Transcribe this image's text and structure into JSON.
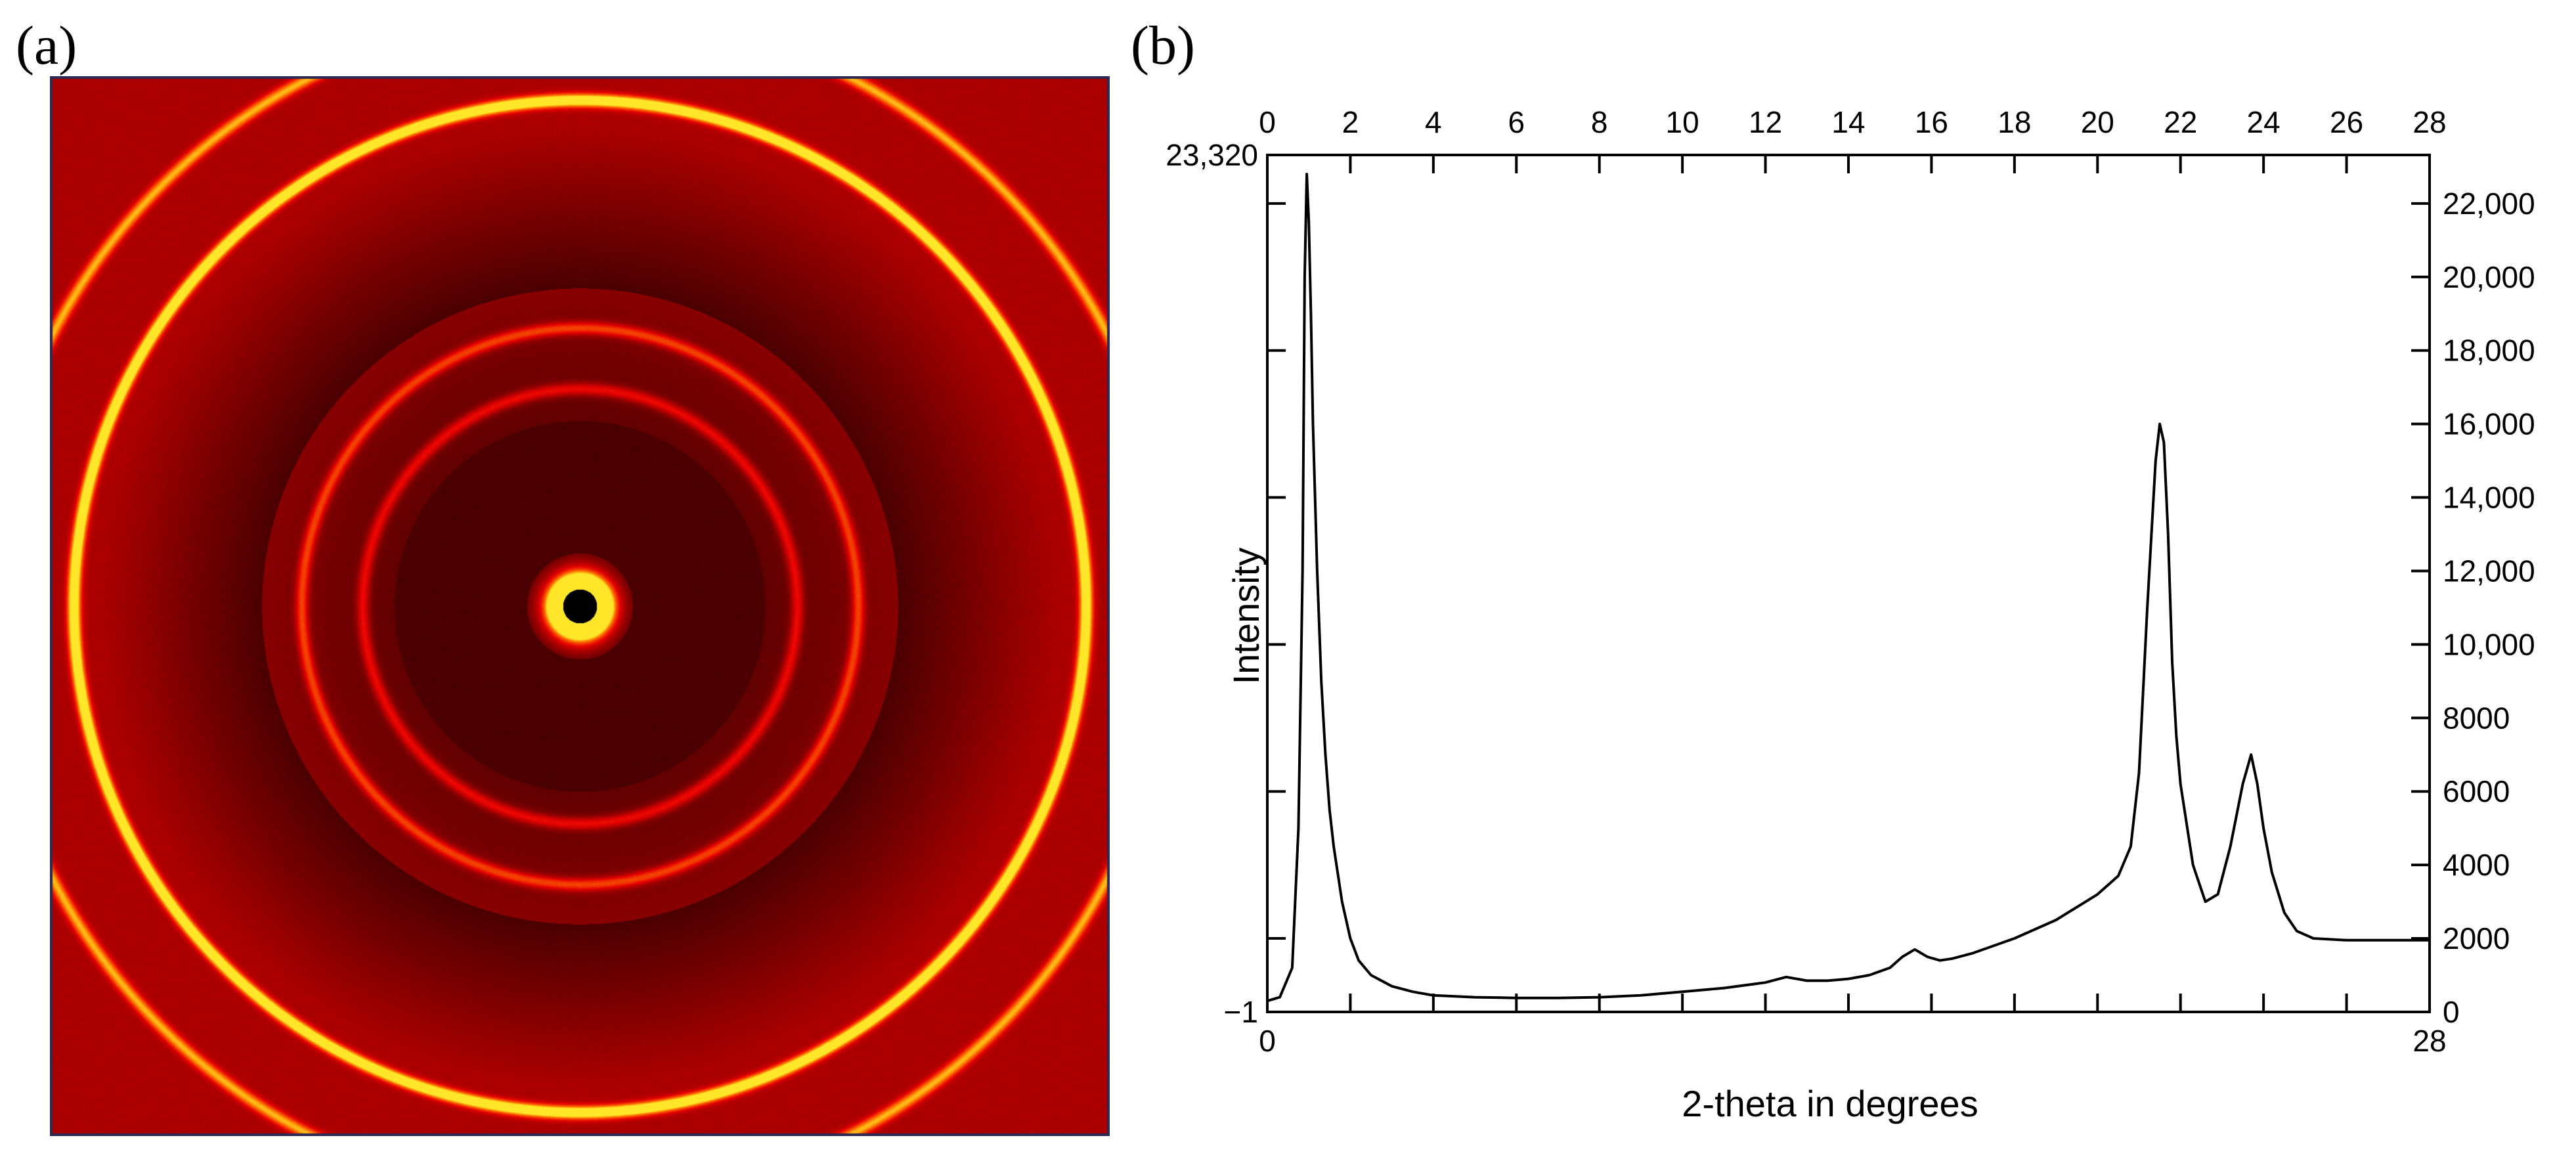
{
  "panels": {
    "a": {
      "label": "(a)",
      "image": {
        "description_icon": "saxs-ring-pattern",
        "colors": {
          "background": "#8a0000",
          "inner_dark": "#220000",
          "ring_bright": "#ffd21a",
          "ring_mid": "#e23200",
          "beamstop": "#000000"
        },
        "rings": [
          {
            "radius_frac": 0.047,
            "intensity": 1.0
          },
          {
            "radius_frac": 0.41,
            "intensity": 0.35
          },
          {
            "radius_frac": 0.525,
            "intensity": 0.45
          },
          {
            "radius_frac": 0.955,
            "intensity": 1.0
          },
          {
            "radius_frac": 1.12,
            "intensity": 0.6
          }
        ]
      }
    },
    "b": {
      "label": "(b)"
    }
  },
  "chart_data": {
    "type": "line",
    "xlabel": "2-theta in degrees",
    "ylabel": "Intensity",
    "xlim": [
      0,
      28
    ],
    "ylim": [
      -1,
      23320
    ],
    "x_ticks_top": [
      0,
      2,
      4,
      6,
      8,
      10,
      12,
      14,
      16,
      18,
      20,
      22,
      24,
      26,
      28
    ],
    "x_tick_labels_top": [
      "0",
      "2",
      "4",
      "6",
      "8",
      "10",
      "12",
      "14",
      "16",
      "18",
      "20",
      "22",
      "24",
      "26",
      "28"
    ],
    "x_ticks_bottom": [
      0,
      2,
      4,
      6,
      8,
      10,
      12,
      14,
      16,
      18,
      20,
      22,
      24,
      26,
      28
    ],
    "x_tick_labels_bottom": [
      "0",
      "",
      "",
      "",
      "",
      "",
      "",
      "",
      "",
      "",
      "",
      "",
      "",
      "",
      "28"
    ],
    "y_ticks_right": [
      0,
      2000,
      4000,
      6000,
      8000,
      10000,
      12000,
      14000,
      16000,
      18000,
      20000,
      22000
    ],
    "y_tick_labels_right": [
      "0",
      "2000",
      "4000",
      "6000",
      "8000",
      "10,000",
      "12,000",
      "14,000",
      "16,000",
      "18,000",
      "20,000",
      "22,000"
    ],
    "y_ticks_left": [
      2000,
      6000,
      10000,
      14000,
      18000,
      22000
    ],
    "y_extent_labels_left": {
      "max": "23,320",
      "min": "−1"
    },
    "grid": false,
    "series": [
      {
        "x": [
          0,
          0.3,
          0.6,
          0.75,
          0.85,
          0.9,
          0.95,
          1.0,
          1.05,
          1.1,
          1.2,
          1.3,
          1.4,
          1.5,
          1.6,
          1.8,
          2.0,
          2.2,
          2.5,
          3.0,
          3.5,
          4.0,
          5.0,
          6.0,
          7.0,
          8.0,
          9.0,
          10.0,
          11.0,
          12.0,
          12.5,
          13.0,
          13.5,
          14.0,
          14.5,
          15.0,
          15.3,
          15.6,
          15.9,
          16.2,
          16.5,
          17.0,
          18.0,
          19.0,
          20.0,
          20.5,
          20.8,
          21.0,
          21.2,
          21.4,
          21.5,
          21.6,
          21.7,
          21.8,
          21.9,
          22.0,
          22.3,
          22.6,
          22.9,
          23.2,
          23.5,
          23.7,
          23.85,
          24.0,
          24.2,
          24.5,
          24.8,
          25.2,
          26.0,
          27.0,
          28.0
        ],
        "y": [
          300,
          400,
          1200,
          5000,
          12000,
          20000,
          22800,
          21500,
          19000,
          16000,
          12000,
          9000,
          7000,
          5500,
          4500,
          3000,
          2000,
          1400,
          1000,
          700,
          550,
          450,
          400,
          380,
          380,
          400,
          450,
          550,
          650,
          800,
          950,
          850,
          850,
          900,
          1000,
          1200,
          1500,
          1700,
          1500,
          1400,
          1450,
          1600,
          2000,
          2500,
          3200,
          3700,
          4500,
          6500,
          11000,
          15000,
          16000,
          15500,
          13000,
          9500,
          7500,
          6200,
          4000,
          3000,
          3200,
          4500,
          6200,
          7000,
          6200,
          5000,
          3800,
          2700,
          2200,
          2000,
          1950,
          1950,
          1950
        ]
      }
    ]
  }
}
